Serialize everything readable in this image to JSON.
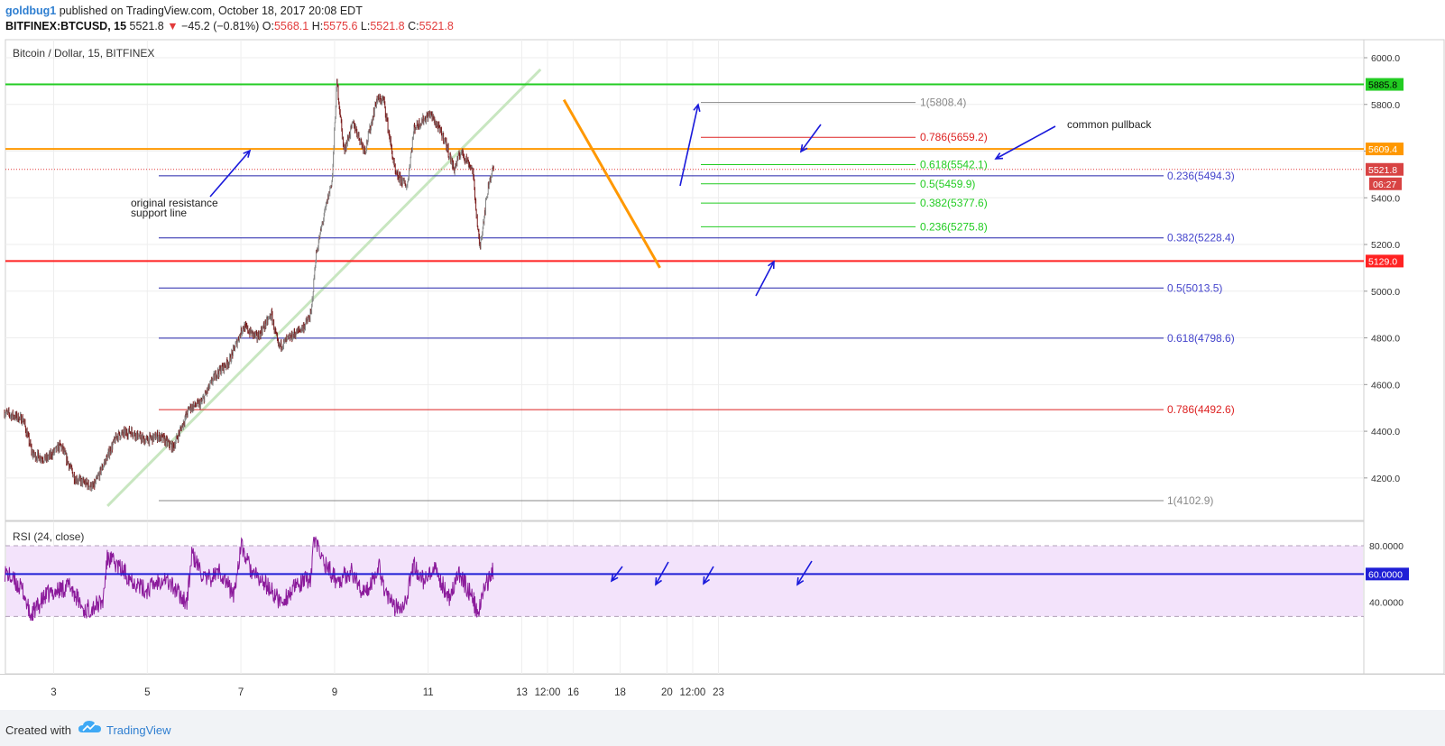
{
  "header": {
    "author": "goldbug1",
    "published": "published on TradingView.com, October 18, 2017 20:08 EDT",
    "symbol": "BITFINEX:BTCUSD, 15",
    "last": "5521.8",
    "change_arrow": "▼",
    "change": "−45.2 (−0.81%)",
    "o_label": "O:",
    "o": "5568.1",
    "h_label": "H:",
    "h": "5575.6",
    "l_label": "L:",
    "l": "5521.8",
    "c_label": "C:",
    "c": "5521.8"
  },
  "footer": {
    "created_with": "Created with",
    "brand": "TradingView"
  },
  "colors": {
    "grid": "#eeeeee",
    "candle_up": "#888888",
    "candle_down": "#7a1a1a",
    "fib_blue": "#2222aa",
    "fib_green": "#22cc22",
    "resistance_orange": "#ff9800",
    "support_red": "#ff2222",
    "resistance_green": "#22cc22",
    "trendline": "#c8e6c0",
    "arrow_blue": "#1a1adb",
    "rsi_line": "#8b1a9b",
    "rsi_band": "#f3e3fb",
    "rsi_level": "#1f1fd6"
  },
  "chart_data": [
    {
      "type": "candlestick",
      "title": "Bitcoin / Dollar, 15, BITFINEX",
      "ylim": [
        4000,
        6100
      ],
      "y_ticks": [
        4200,
        4400,
        4600,
        4800,
        5000,
        5200,
        5400,
        5600,
        5800,
        6000
      ],
      "y_tick_labels": [
        "4200.0",
        "4400.0",
        "4600.0",
        "4800.0",
        "5000.0",
        "5200.0",
        "5400.0",
        "5600.0",
        "5800.0",
        "6000.0"
      ],
      "x_ticks": [
        {
          "t": 0.05,
          "label": "3"
        },
        {
          "t": 2.05,
          "label": "5"
        },
        {
          "t": 4.05,
          "label": "7"
        },
        {
          "t": 6.05,
          "label": "9"
        },
        {
          "t": 8.05,
          "label": "11"
        },
        {
          "t": 10.05,
          "label": "13"
        },
        {
          "t": 10.6,
          "label": "12:00"
        },
        {
          "t": 11.15,
          "label": "16"
        },
        {
          "t": 12.15,
          "label": "18"
        },
        {
          "t": 13.15,
          "label": "20"
        },
        {
          "t": 13.7,
          "label": "12:00"
        },
        {
          "t": 14.25,
          "label": "23"
        }
      ],
      "price_path": [
        [
          -1,
          4480
        ],
        [
          -0.6,
          4450
        ],
        [
          -0.4,
          4300
        ],
        [
          -0.1,
          4280
        ],
        [
          0.2,
          4340
        ],
        [
          0.5,
          4200
        ],
        [
          0.9,
          4160
        ],
        [
          1.1,
          4250
        ],
        [
          1.4,
          4380
        ],
        [
          1.7,
          4400
        ],
        [
          2.0,
          4360
        ],
        [
          2.3,
          4380
        ],
        [
          2.6,
          4330
        ],
        [
          2.95,
          4500
        ],
        [
          3.2,
          4520
        ],
        [
          3.5,
          4640
        ],
        [
          3.8,
          4700
        ],
        [
          4.1,
          4850
        ],
        [
          4.4,
          4800
        ],
        [
          4.7,
          4900
        ],
        [
          4.85,
          4760
        ],
        [
          5.1,
          4800
        ],
        [
          5.4,
          4850
        ],
        [
          5.55,
          4900
        ],
        [
          5.65,
          5150
        ],
        [
          5.8,
          5300
        ],
        [
          6.0,
          5480
        ],
        [
          6.1,
          5900
        ],
        [
          6.25,
          5600
        ],
        [
          6.45,
          5720
        ],
        [
          6.7,
          5600
        ],
        [
          6.95,
          5820
        ],
        [
          7.1,
          5820
        ],
        [
          7.35,
          5500
        ],
        [
          7.6,
          5450
        ],
        [
          7.75,
          5700
        ],
        [
          8.1,
          5760
        ],
        [
          8.4,
          5650
        ],
        [
          8.6,
          5520
        ],
        [
          8.75,
          5600
        ],
        [
          9.0,
          5520
        ],
        [
          9.15,
          5180
        ],
        [
          9.25,
          5330
        ],
        [
          9.35,
          5470
        ],
        [
          9.45,
          5530
        ]
      ],
      "last_price": 5521.8,
      "countdown": "06:27",
      "horizontal_lines": [
        {
          "price": 5885.8,
          "label": "5885.8",
          "color": "#22cc22"
        },
        {
          "price": 5609.4,
          "label": "5609.4",
          "color": "#ff9800"
        },
        {
          "price": 5129.0,
          "label": "5129.0",
          "color": "#ff2222"
        }
      ],
      "fib_retracement_large": {
        "levels": [
          {
            "ratio": "0.236",
            "price": 5494.3,
            "label": "0.236(5494.3)",
            "color": "#2222aa"
          },
          {
            "ratio": "0.382",
            "price": 5228.4,
            "label": "0.382(5228.4)",
            "color": "#2222aa"
          },
          {
            "ratio": "0.5",
            "price": 5013.5,
            "label": "0.5(5013.5)",
            "color": "#2222aa"
          },
          {
            "ratio": "0.618",
            "price": 4798.6,
            "label": "0.618(4798.6)",
            "color": "#2222aa"
          },
          {
            "ratio": "0.786",
            "price": 4492.6,
            "label": "0.786(4492.6)",
            "color": "#dd2222"
          },
          {
            "ratio": "1",
            "price": 4102.9,
            "label": "1(4102.9)",
            "color": "#888888"
          }
        ]
      },
      "fib_retracement_small": {
        "levels": [
          {
            "ratio": "1",
            "price": 5808.4,
            "label": "1(5808.4)",
            "color": "#888888"
          },
          {
            "ratio": "0.786",
            "price": 5659.2,
            "label": "0.786(5659.2)",
            "color": "#dd2222"
          },
          {
            "ratio": "0.618",
            "price": 5542.1,
            "label": "0.618(5542.1)",
            "color": "#22cc22"
          },
          {
            "ratio": "0.5",
            "price": 5459.9,
            "label": "0.5(5459.9)",
            "color": "#22cc22"
          },
          {
            "ratio": "0.382",
            "price": 5377.6,
            "label": "0.382(5377.6)",
            "color": "#22cc22"
          },
          {
            "ratio": "0.236",
            "price": 5275.8,
            "label": "0.236(5275.8)",
            "color": "#22cc22"
          }
        ]
      },
      "trendlines": [
        {
          "from": [
            1.2,
            4080
          ],
          "to": [
            10.45,
            5950
          ],
          "color": "#c8e6c0"
        },
        {
          "from": [
            10.95,
            5820
          ],
          "to": [
            13.0,
            5100
          ],
          "color": "#ff9800"
        }
      ],
      "annotations": [
        "original resistance support line",
        "common pullback"
      ]
    },
    {
      "type": "line",
      "title": "RSI (24, close)",
      "ylim": [
        25,
        87
      ],
      "y_ticks": [
        40,
        60,
        80
      ],
      "y_tick_labels": [
        "40.0000",
        "60.0000",
        "80.0000"
      ],
      "upper_band": 80,
      "lower_band": 30,
      "level_line": 60,
      "level_label": "60.0000",
      "rsi_path": [
        [
          -1,
          62
        ],
        [
          -0.6,
          48
        ],
        [
          -0.45,
          30
        ],
        [
          -0.1,
          45
        ],
        [
          0.4,
          52
        ],
        [
          0.7,
          34
        ],
        [
          1.1,
          40
        ],
        [
          1.2,
          72
        ],
        [
          1.6,
          60
        ],
        [
          2.0,
          48
        ],
        [
          2.4,
          58
        ],
        [
          2.9,
          40
        ],
        [
          3.0,
          74
        ],
        [
          3.3,
          55
        ],
        [
          3.6,
          62
        ],
        [
          3.9,
          45
        ],
        [
          4.05,
          80
        ],
        [
          4.3,
          60
        ],
        [
          4.6,
          52
        ],
        [
          4.9,
          40
        ],
        [
          5.2,
          50
        ],
        [
          5.55,
          58
        ],
        [
          5.6,
          86
        ],
        [
          5.8,
          70
        ],
        [
          6.1,
          55
        ],
        [
          6.4,
          62
        ],
        [
          6.7,
          45
        ],
        [
          7.0,
          66
        ],
        [
          7.1,
          52
        ],
        [
          7.3,
          36
        ],
        [
          7.55,
          40
        ],
        [
          7.75,
          66
        ],
        [
          7.95,
          55
        ],
        [
          8.2,
          62
        ],
        [
          8.5,
          44
        ],
        [
          8.7,
          60
        ],
        [
          9.0,
          44
        ],
        [
          9.1,
          30
        ],
        [
          9.25,
          50
        ],
        [
          9.4,
          60
        ],
        [
          9.45,
          63
        ]
      ]
    }
  ]
}
